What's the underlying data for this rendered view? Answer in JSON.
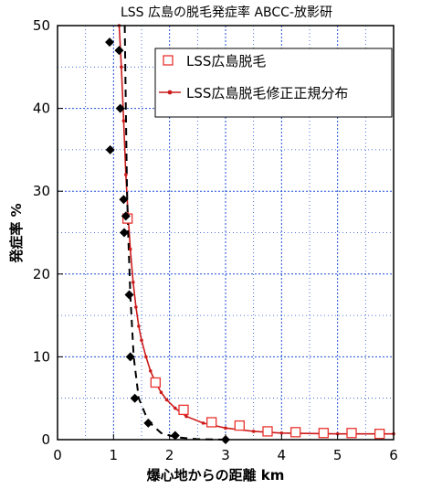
{
  "chart_data": {
    "type": "scatter",
    "title": "LSS 広島の脱毛発症率 ABCC-放影研",
    "xlabel": "爆心地からの距離 km",
    "ylabel": "発症率 %",
    "xlim": [
      0,
      6
    ],
    "ylim": [
      0,
      50
    ],
    "x_ticks": [
      "0",
      "1",
      "2",
      "3",
      "4",
      "5",
      "6"
    ],
    "y_ticks": [
      "0",
      "10",
      "20",
      "30",
      "40",
      "50"
    ],
    "grid": "dotted",
    "legend_placement": "top-right",
    "series": [
      {
        "name": "LSS広島脱毛",
        "marker": "open-square",
        "color": "#e8322e",
        "x": [
          1.25,
          1.75,
          2.25,
          2.75,
          3.25,
          3.75,
          4.25,
          4.75,
          5.25,
          5.75
        ],
        "y": [
          26.7,
          6.9,
          3.6,
          2.1,
          1.7,
          1.0,
          0.9,
          0.8,
          0.8,
          0.7
        ]
      },
      {
        "name": "LSS広島脱毛修正正規分布",
        "line": "solid",
        "marker": "small-dot",
        "color": "#cc1a1a",
        "x": [
          1.1,
          1.14,
          1.18,
          1.22,
          1.26,
          1.3,
          1.35,
          1.4,
          1.45,
          1.5,
          1.58,
          1.66,
          1.75,
          1.85,
          1.95,
          2.1,
          2.3,
          2.6,
          3.0,
          3.5,
          4.0,
          5.0,
          6.0
        ],
        "y": [
          50.0,
          45.0,
          38.5,
          32.0,
          27.0,
          23.0,
          19.0,
          16.0,
          13.7,
          12.0,
          10.0,
          8.3,
          6.9,
          5.7,
          4.8,
          3.8,
          2.8,
          2.0,
          1.4,
          1.0,
          0.8,
          0.7,
          0.7
        ]
      },
      {
        "name": "",
        "line": "dashed",
        "marker": "filled-diamond",
        "color": "#000000",
        "x": [
          0.93,
          0.94,
          1.1,
          1.12,
          1.18,
          1.19,
          1.22,
          1.28,
          1.3,
          1.38,
          1.62,
          2.1,
          3.0
        ],
        "y": [
          48.0,
          35.0,
          47.0,
          40.0,
          29.0,
          25.0,
          27.0,
          17.5,
          10.0,
          5.0,
          2.0,
          0.5,
          0.0
        ]
      }
    ]
  }
}
